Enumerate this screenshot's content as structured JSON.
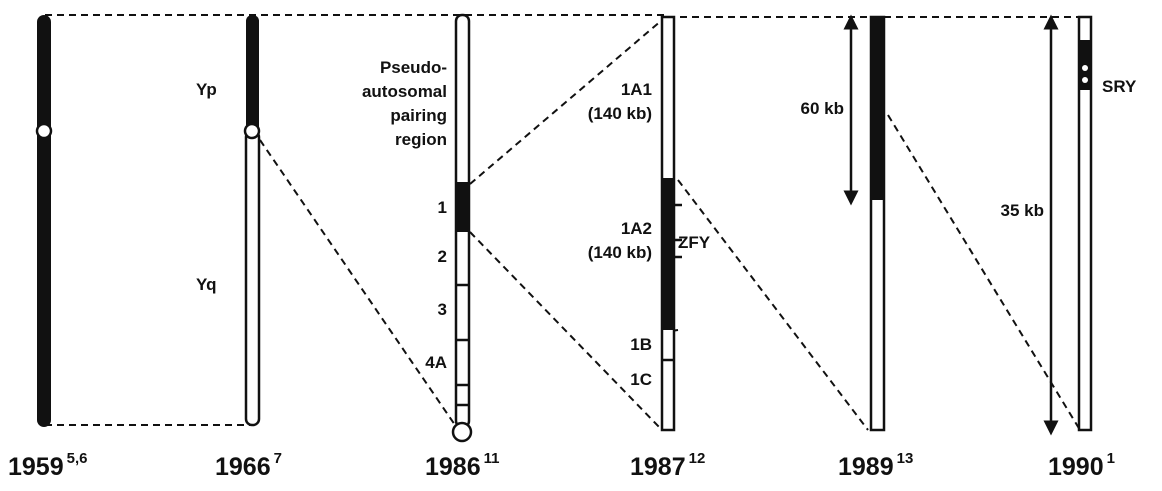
{
  "columns": [
    {
      "year": "1959",
      "ref": "5,6"
    },
    {
      "year": "1966",
      "ref": "7"
    },
    {
      "year": "1986",
      "ref": "11"
    },
    {
      "year": "1987",
      "ref": "12"
    },
    {
      "year": "1989",
      "ref": "13"
    },
    {
      "year": "1990",
      "ref": "1"
    }
  ],
  "labels": {
    "yp": "Yp",
    "yq": "Yq",
    "pseudo": [
      "Pseudo-",
      "autosomal",
      "pairing",
      "region"
    ],
    "bands1986": [
      "1",
      "2",
      "3",
      "4A"
    ],
    "a1": "1A1",
    "a1size": "(140 kb)",
    "a2": "1A2",
    "a2size": "(140 kb)",
    "zfy": "ZFY",
    "b1": "1B",
    "c1": "1C",
    "kb60": "60 kb",
    "kb35": "35 kb",
    "sry": "SRY"
  }
}
